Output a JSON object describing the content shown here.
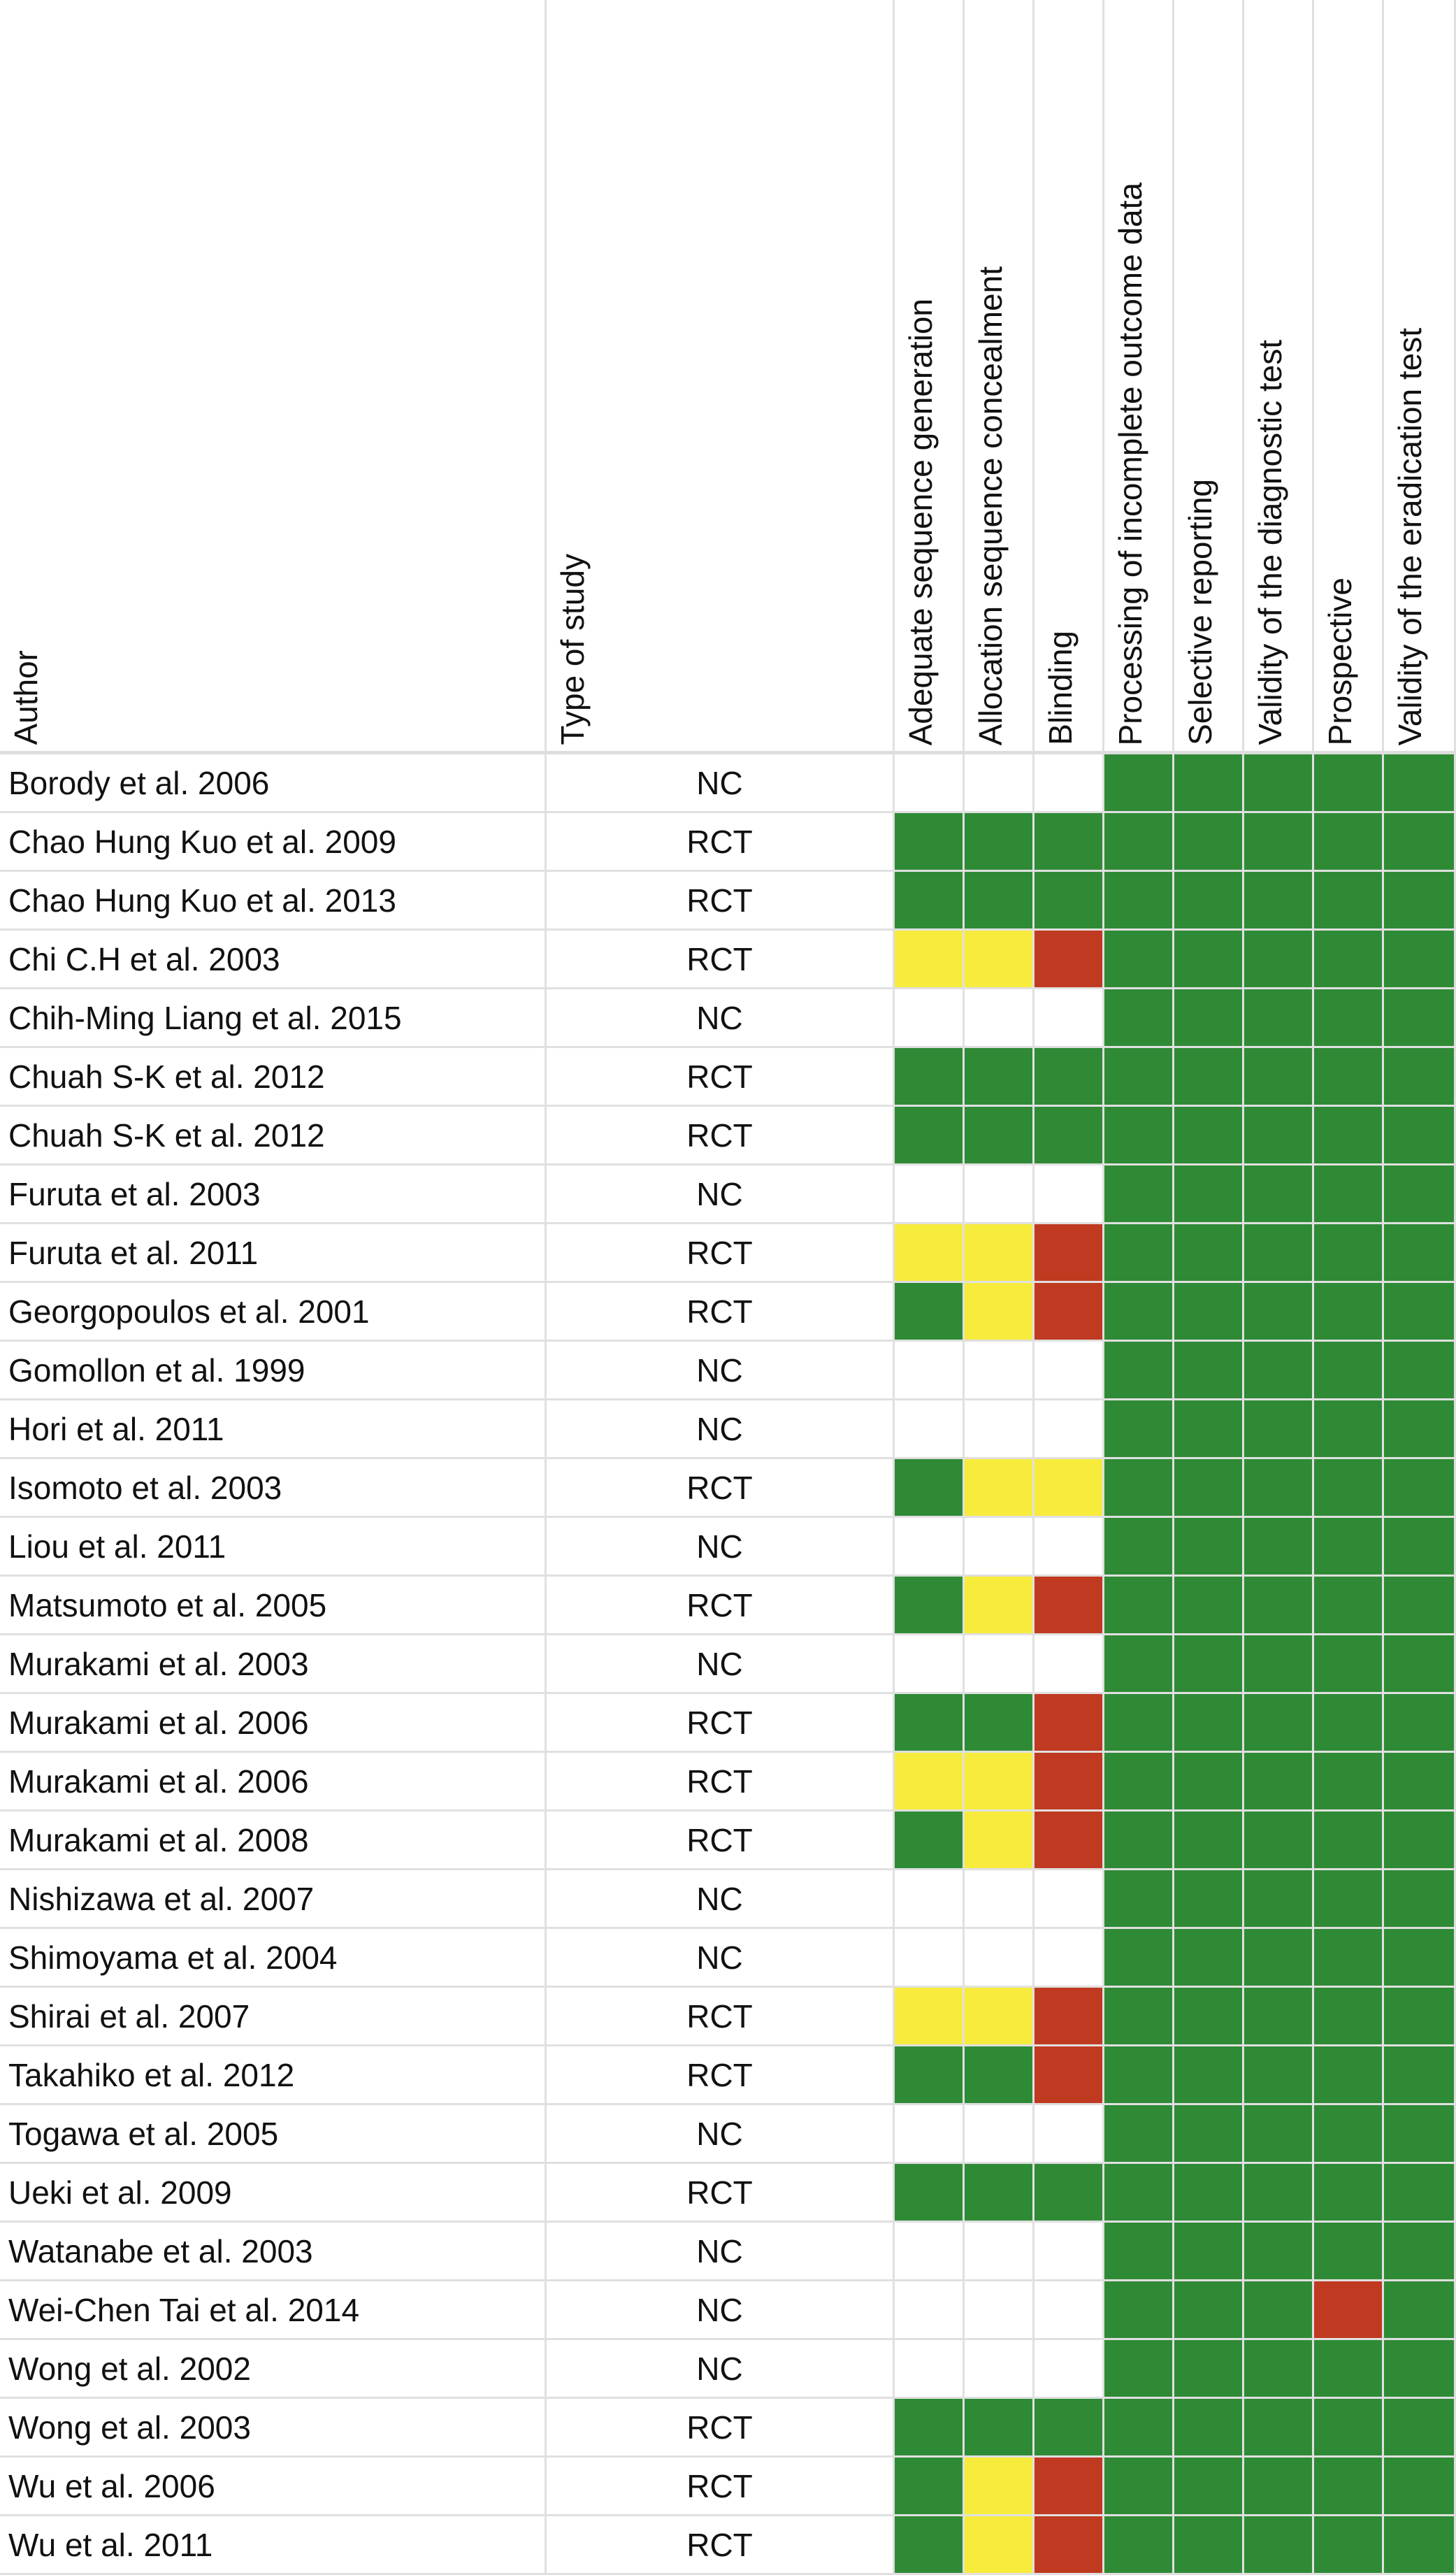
{
  "table": {
    "columns": [
      "Author",
      "Type of study",
      "Adequate sequence generation",
      "Allocation sequence concealment",
      "Blinding",
      "Processing of incomplete outcome data",
      "Selective reporting",
      "Validity of the diagnostic test",
      "Prospective",
      "Validity of the eradication test"
    ],
    "colors": {
      "low": "#2f8a36",
      "unclear": "#f7ec3c",
      "high": "#bf3a20"
    },
    "rows": [
      {
        "author": "Borody et al. 2006",
        "type": "NC",
        "ratings": [
          null,
          null,
          null,
          "low",
          "low",
          "low",
          "low",
          "low"
        ]
      },
      {
        "author": "Chao Hung Kuo et al. 2009",
        "type": "RCT",
        "ratings": [
          "low",
          "low",
          "low",
          "low",
          "low",
          "low",
          "low",
          "low"
        ]
      },
      {
        "author": "Chao Hung Kuo et al. 2013",
        "type": "RCT",
        "ratings": [
          "low",
          "low",
          "low",
          "low",
          "low",
          "low",
          "low",
          "low"
        ]
      },
      {
        "author": "Chi C.H et al. 2003",
        "type": "RCT",
        "ratings": [
          "unclear",
          "unclear",
          "high",
          "low",
          "low",
          "low",
          "low",
          "low"
        ]
      },
      {
        "author": "Chih-Ming Liang et al. 2015",
        "type": "NC",
        "ratings": [
          null,
          null,
          null,
          "low",
          "low",
          "low",
          "low",
          "low"
        ]
      },
      {
        "author": "Chuah S-K et al. 2012",
        "type": "RCT",
        "ratings": [
          "low",
          "low",
          "low",
          "low",
          "low",
          "low",
          "low",
          "low"
        ]
      },
      {
        "author": "Chuah S-K et al. 2012",
        "type": "RCT",
        "ratings": [
          "low",
          "low",
          "low",
          "low",
          "low",
          "low",
          "low",
          "low"
        ]
      },
      {
        "author": "Furuta et al. 2003",
        "type": "NC",
        "ratings": [
          null,
          null,
          null,
          "low",
          "low",
          "low",
          "low",
          "low"
        ]
      },
      {
        "author": "Furuta et al. 2011",
        "type": "RCT",
        "ratings": [
          "unclear",
          "unclear",
          "high",
          "low",
          "low",
          "low",
          "low",
          "low"
        ]
      },
      {
        "author": "Georgopoulos et al. 2001",
        "type": "RCT",
        "ratings": [
          "low",
          "unclear",
          "high",
          "low",
          "low",
          "low",
          "low",
          "low"
        ]
      },
      {
        "author": "Gomollon et al. 1999",
        "type": "NC",
        "ratings": [
          null,
          null,
          null,
          "low",
          "low",
          "low",
          "low",
          "low"
        ]
      },
      {
        "author": "Hori et al. 2011",
        "type": "NC",
        "ratings": [
          null,
          null,
          null,
          "low",
          "low",
          "low",
          "low",
          "low"
        ]
      },
      {
        "author": "Isomoto et al. 2003",
        "type": "RCT",
        "ratings": [
          "low",
          "unclear",
          "unclear",
          "low",
          "low",
          "low",
          "low",
          "low"
        ]
      },
      {
        "author": "Liou et al. 2011",
        "type": "NC",
        "ratings": [
          null,
          null,
          null,
          "low",
          "low",
          "low",
          "low",
          "low"
        ]
      },
      {
        "author": "Matsumoto et al. 2005",
        "type": "RCT",
        "ratings": [
          "low",
          "unclear",
          "high",
          "low",
          "low",
          "low",
          "low",
          "low"
        ]
      },
      {
        "author": "Murakami et al. 2003",
        "type": "NC",
        "ratings": [
          null,
          null,
          null,
          "low",
          "low",
          "low",
          "low",
          "low"
        ]
      },
      {
        "author": "Murakami et al. 2006",
        "type": "RCT",
        "ratings": [
          "low",
          "low",
          "high",
          "low",
          "low",
          "low",
          "low",
          "low"
        ]
      },
      {
        "author": "Murakami et al. 2006",
        "type": "RCT",
        "ratings": [
          "unclear",
          "unclear",
          "high",
          "low",
          "low",
          "low",
          "low",
          "low"
        ]
      },
      {
        "author": "Murakami et al. 2008",
        "type": "RCT",
        "ratings": [
          "low",
          "unclear",
          "high",
          "low",
          "low",
          "low",
          "low",
          "low"
        ]
      },
      {
        "author": "Nishizawa et al. 2007",
        "type": "NC",
        "ratings": [
          null,
          null,
          null,
          "low",
          "low",
          "low",
          "low",
          "low"
        ]
      },
      {
        "author": "Shimoyama et al. 2004",
        "type": "NC",
        "ratings": [
          null,
          null,
          null,
          "low",
          "low",
          "low",
          "low",
          "low"
        ]
      },
      {
        "author": "Shirai et al. 2007",
        "type": "RCT",
        "ratings": [
          "unclear",
          "unclear",
          "high",
          "low",
          "low",
          "low",
          "low",
          "low"
        ]
      },
      {
        "author": "Takahiko et al. 2012",
        "type": "RCT",
        "ratings": [
          "low",
          "low",
          "high",
          "low",
          "low",
          "low",
          "low",
          "low"
        ]
      },
      {
        "author": "Togawa et al. 2005",
        "type": "NC",
        "ratings": [
          null,
          null,
          null,
          "low",
          "low",
          "low",
          "low",
          "low"
        ]
      },
      {
        "author": "Ueki et al. 2009",
        "type": "RCT",
        "ratings": [
          "low",
          "low",
          "low",
          "low",
          "low",
          "low",
          "low",
          "low"
        ]
      },
      {
        "author": "Watanabe et al. 2003",
        "type": "NC",
        "ratings": [
          null,
          null,
          null,
          "low",
          "low",
          "low",
          "low",
          "low"
        ]
      },
      {
        "author": "Wei-Chen Tai et al. 2014",
        "type": "NC",
        "ratings": [
          null,
          null,
          null,
          "low",
          "low",
          "low",
          "high",
          "low"
        ]
      },
      {
        "author": "Wong et al. 2002",
        "type": "NC",
        "ratings": [
          null,
          null,
          null,
          "low",
          "low",
          "low",
          "low",
          "low"
        ]
      },
      {
        "author": "Wong et al. 2003",
        "type": "RCT",
        "ratings": [
          "low",
          "low",
          "low",
          "low",
          "low",
          "low",
          "low",
          "low"
        ]
      },
      {
        "author": "Wu et al. 2006",
        "type": "RCT",
        "ratings": [
          "low",
          "unclear",
          "high",
          "low",
          "low",
          "low",
          "low",
          "low"
        ]
      },
      {
        "author": "Wu et al. 2011",
        "type": "RCT",
        "ratings": [
          "low",
          "unclear",
          "high",
          "low",
          "low",
          "low",
          "low",
          "low"
        ]
      }
    ]
  }
}
